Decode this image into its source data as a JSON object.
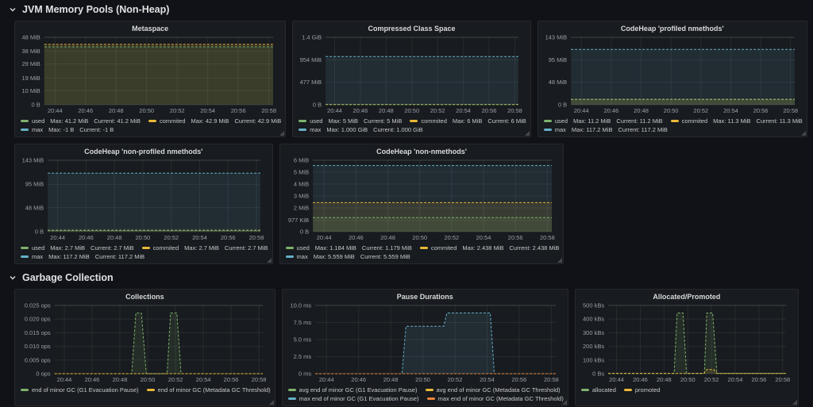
{
  "colors": {
    "ui": {
      "background": "#111217",
      "panel_background": "#181b1f"
    },
    "series": {
      "green": "#7EB26D",
      "yellow": "#EAB839",
      "blue": "#64B0C8",
      "orange": "#EF843C"
    }
  },
  "x_axis": {
    "domain": [
      43.3,
      58.28
    ],
    "ticks": [
      {
        "v": 44,
        "label": "20:44"
      },
      {
        "v": 46,
        "label": "20:46"
      },
      {
        "v": 48,
        "label": "20:48"
      },
      {
        "v": 50,
        "label": "20:50"
      },
      {
        "v": 52,
        "label": "20:52"
      },
      {
        "v": 54,
        "label": "20:54"
      },
      {
        "v": 56,
        "label": "20:56"
      },
      {
        "v": 58,
        "label": "20:58"
      }
    ]
  },
  "sections": [
    {
      "title": "JVM Memory Pools (Non-Heap)",
      "rows": [
        [
          {
            "title": "Metaspace",
            "chart_data": {
              "type": "area",
              "unit": "MiB",
              "y_max": 48,
              "y_ticks": [
                {
                  "v": 0,
                  "label": "0 B"
                },
                {
                  "v": 10,
                  "label": "10 MiB"
                },
                {
                  "v": 19,
                  "label": "19 MiB"
                },
                {
                  "v": 29,
                  "label": "29 MiB"
                },
                {
                  "v": 38,
                  "label": "38 MiB"
                },
                {
                  "v": 48,
                  "label": "48 MiB"
                }
              ],
              "series": [
                {
                  "name": "commited",
                  "color": "yellow",
                  "fill": true,
                  "flat": 42.9
                },
                {
                  "name": "used",
                  "color": "green",
                  "fill": true,
                  "flat": 41.2
                }
              ]
            },
            "legend_rows": [
              [
                {
                  "color": "green",
                  "label": "used",
                  "max": "41.2 MiB",
                  "current": "41.2 MiB"
                },
                {
                  "color": "yellow",
                  "label": "commited",
                  "max": "42.9 MiB",
                  "current": "42.9 MiB"
                }
              ],
              [
                {
                  "color": "blue",
                  "label": "max",
                  "max": "-1 B",
                  "current": "-1 B"
                }
              ]
            ]
          },
          {
            "title": "Compressed Class Space",
            "chart_data": {
              "type": "area",
              "unit": "MiB",
              "y_max": 1433.6,
              "y_ticks": [
                {
                  "v": 0,
                  "label": "0 B"
                },
                {
                  "v": 477,
                  "label": "477 MiB"
                },
                {
                  "v": 954,
                  "label": "954 MiB"
                },
                {
                  "v": 1433.6,
                  "label": "1.4 GiB"
                }
              ],
              "series": [
                {
                  "name": "max",
                  "color": "blue",
                  "fill": true,
                  "flat": 1024
                },
                {
                  "name": "commited",
                  "color": "yellow",
                  "fill": true,
                  "flat": 6
                },
                {
                  "name": "used",
                  "color": "green",
                  "fill": true,
                  "flat": 5
                }
              ]
            },
            "legend_rows": [
              [
                {
                  "color": "green",
                  "label": "used",
                  "max": "5 MiB",
                  "current": "5 MiB"
                },
                {
                  "color": "yellow",
                  "label": "commited",
                  "max": "6 MiB",
                  "current": "6 MiB"
                }
              ],
              [
                {
                  "color": "blue",
                  "label": "max",
                  "max": "1.000 GiB",
                  "current": "1.000 GiB"
                }
              ]
            ]
          },
          {
            "title": "CodeHeap 'profiled nmethods'",
            "chart_data": {
              "type": "area",
              "unit": "MiB",
              "y_max": 143,
              "y_ticks": [
                {
                  "v": 0,
                  "label": "0 B"
                },
                {
                  "v": 48,
                  "label": "48 MiB"
                },
                {
                  "v": 95,
                  "label": "95 MiB"
                },
                {
                  "v": 143,
                  "label": "143 MiB"
                }
              ],
              "series": [
                {
                  "name": "max",
                  "color": "blue",
                  "fill": true,
                  "flat": 117.2
                },
                {
                  "name": "commited",
                  "color": "yellow",
                  "fill": true,
                  "flat": 11.3
                },
                {
                  "name": "used",
                  "color": "green",
                  "fill": true,
                  "flat": 11.2
                }
              ]
            },
            "legend_rows": [
              [
                {
                  "color": "green",
                  "label": "used",
                  "max": "11.2 MiB",
                  "current": "11.2 MiB"
                },
                {
                  "color": "yellow",
                  "label": "commited",
                  "max": "11.3 MiB",
                  "current": "11.3 MiB"
                }
              ],
              [
                {
                  "color": "blue",
                  "label": "max",
                  "max": "117.2 MiB",
                  "current": "117.2 MiB"
                }
              ]
            ]
          }
        ],
        [
          {
            "title": "CodeHeap 'non-profiled nmethods'",
            "chart_data": {
              "type": "area",
              "unit": "MiB",
              "y_max": 143,
              "y_ticks": [
                {
                  "v": 0,
                  "label": "0 B"
                },
                {
                  "v": 48,
                  "label": "48 MiB"
                },
                {
                  "v": 95,
                  "label": "95 MiB"
                },
                {
                  "v": 143,
                  "label": "143 MiB"
                }
              ],
              "series": [
                {
                  "name": "max",
                  "color": "blue",
                  "fill": true,
                  "flat": 117.2
                },
                {
                  "name": "commited",
                  "color": "yellow",
                  "fill": true,
                  "flat": 2.7
                },
                {
                  "name": "used",
                  "color": "green",
                  "fill": true,
                  "flat": 2.7
                }
              ]
            },
            "legend_rows": [
              [
                {
                  "color": "green",
                  "label": "used",
                  "max": "2.7 MiB",
                  "current": "2.7 MiB"
                },
                {
                  "color": "yellow",
                  "label": "commited",
                  "max": "2.7 MiB",
                  "current": "2.7 MiB"
                }
              ],
              [
                {
                  "color": "blue",
                  "label": "max",
                  "max": "117.2 MiB",
                  "current": "117.2 MiB"
                }
              ]
            ]
          },
          {
            "title": "CodeHeap 'non-nmethods'",
            "chart_data": {
              "type": "area",
              "unit": "MiB",
              "y_max": 6,
              "y_ticks": [
                {
                  "v": 0,
                  "label": "0 B"
                },
                {
                  "v": 0.954,
                  "label": "977 KiB"
                },
                {
                  "v": 2,
                  "label": "2 MiB"
                },
                {
                  "v": 3,
                  "label": "3 MiB"
                },
                {
                  "v": 4,
                  "label": "4 MiB"
                },
                {
                  "v": 5,
                  "label": "5 MiB"
                },
                {
                  "v": 6,
                  "label": "6 MiB"
                }
              ],
              "series": [
                {
                  "name": "max",
                  "color": "blue",
                  "fill": true,
                  "flat": 5.559
                },
                {
                  "name": "commited",
                  "color": "yellow",
                  "fill": true,
                  "flat": 2.438
                },
                {
                  "name": "used",
                  "color": "green",
                  "fill": true,
                  "flat": 1.179
                }
              ]
            },
            "legend_rows": [
              [
                {
                  "color": "green",
                  "label": "used",
                  "max": "1.184 MiB",
                  "current": "1.179 MiB"
                },
                {
                  "color": "yellow",
                  "label": "commited",
                  "max": "2.438 MiB",
                  "current": "2.438 MiB"
                }
              ],
              [
                {
                  "color": "blue",
                  "label": "max",
                  "max": "5.559 MiB",
                  "current": "5.559 MiB"
                }
              ]
            ]
          }
        ]
      ]
    },
    {
      "title": "Garbage Collection",
      "rows": [
        [
          {
            "title": "Collections",
            "chart_data": {
              "type": "area",
              "unit": "ops",
              "y_max": 0.025,
              "y_ticks": [
                {
                  "v": 0,
                  "label": "0 ops"
                },
                {
                  "v": 0.005,
                  "label": "0.005 ops"
                },
                {
                  "v": 0.01,
                  "label": "0.010 ops"
                },
                {
                  "v": 0.015,
                  "label": "0.015 ops"
                },
                {
                  "v": 0.02,
                  "label": "0.020 ops"
                },
                {
                  "v": 0.025,
                  "label": "0.025 ops"
                }
              ],
              "series": [
                {
                  "name": "g1-evacuation-pause",
                  "color": "green",
                  "fill": true,
                  "points": [
                    [
                      43.3,
                      0
                    ],
                    [
                      48.85,
                      0
                    ],
                    [
                      49.15,
                      0.0222
                    ],
                    [
                      49.55,
                      0.0222
                    ],
                    [
                      49.9,
                      0
                    ],
                    [
                      51.4,
                      0
                    ],
                    [
                      51.65,
                      0.0222
                    ],
                    [
                      52.1,
                      0.0222
                    ],
                    [
                      52.4,
                      0
                    ],
                    [
                      58.28,
                      0
                    ]
                  ]
                },
                {
                  "name": "metadata-gc-threshold",
                  "color": "yellow",
                  "fill": false,
                  "flat": 0
                }
              ]
            },
            "legend_rows": [
              [
                {
                  "color": "green",
                  "label": "end of minor GC (G1 Evacuation Pause)"
                },
                {
                  "color": "yellow",
                  "label": "end of minor GC (Metadata GC Threshold)"
                }
              ]
            ]
          },
          {
            "title": "Pause Durations",
            "chart_data": {
              "type": "area",
              "unit": "ms",
              "y_max": 10,
              "y_ticks": [
                {
                  "v": 0,
                  "label": "0 ms"
                },
                {
                  "v": 2.5,
                  "label": "2.5 ms"
                },
                {
                  "v": 5,
                  "label": "5.0 ms"
                },
                {
                  "v": 7.5,
                  "label": "7.5 ms"
                },
                {
                  "v": 10,
                  "label": "10.0 ms"
                }
              ],
              "series": [
                {
                  "name": "avg-g1-evacuation-pause",
                  "color": "green",
                  "fill": false,
                  "flat": 0
                },
                {
                  "name": "avg-metadata-gc-threshold",
                  "color": "yellow",
                  "fill": false,
                  "flat": 0
                },
                {
                  "name": "max-g1-evacuation-pause",
                  "color": "blue",
                  "fill": true,
                  "points": [
                    [
                      43.3,
                      0
                    ],
                    [
                      48.7,
                      0
                    ],
                    [
                      48.95,
                      6.95
                    ],
                    [
                      51.3,
                      6.95
                    ],
                    [
                      51.5,
                      8.9
                    ],
                    [
                      54.2,
                      8.9
                    ],
                    [
                      54.45,
                      0
                    ],
                    [
                      58.28,
                      0
                    ]
                  ]
                },
                {
                  "name": "max-metadata-gc-threshold",
                  "color": "orange",
                  "fill": false,
                  "flat": 0
                }
              ]
            },
            "legend_rows": [
              [
                {
                  "color": "green",
                  "label": "avg end of minor GC (G1 Evacuation Pause)"
                },
                {
                  "color": "yellow",
                  "label": "avg end of minor GC (Metadata GC Threshold)"
                }
              ],
              [
                {
                  "color": "blue",
                  "label": "max end of minor GC (G1 Evacuation Pause)"
                },
                {
                  "color": "orange",
                  "label": "max end of minor GC (Metadata GC Threshold)"
                }
              ]
            ]
          },
          {
            "title": "Allocated/Promoted",
            "chart_data": {
              "type": "area",
              "unit": "kBs",
              "y_max": 500,
              "y_ticks": [
                {
                  "v": 0,
                  "label": "0 Bs"
                },
                {
                  "v": 100,
                  "label": "100 kBs"
                },
                {
                  "v": 200,
                  "label": "200 kBs"
                },
                {
                  "v": 300,
                  "label": "300 kBs"
                },
                {
                  "v": 400,
                  "label": "400 kBs"
                },
                {
                  "v": 500,
                  "label": "500 kBs"
                }
              ],
              "series": [
                {
                  "name": "allocated",
                  "color": "green",
                  "fill": true,
                  "points": [
                    [
                      43.3,
                      3
                    ],
                    [
                      48.85,
                      3
                    ],
                    [
                      49.1,
                      445
                    ],
                    [
                      49.6,
                      445
                    ],
                    [
                      49.9,
                      3
                    ],
                    [
                      51.4,
                      3
                    ],
                    [
                      51.6,
                      445
                    ],
                    [
                      52.1,
                      445
                    ],
                    [
                      52.45,
                      3
                    ],
                    [
                      58.28,
                      3
                    ]
                  ]
                },
                {
                  "name": "promoted",
                  "color": "yellow",
                  "fill": true,
                  "points": [
                    [
                      43.3,
                      1
                    ],
                    [
                      51.35,
                      1
                    ],
                    [
                      51.6,
                      30
                    ],
                    [
                      52.2,
                      30
                    ],
                    [
                      52.45,
                      1
                    ],
                    [
                      58.28,
                      1
                    ]
                  ]
                }
              ]
            },
            "legend_rows": [
              [
                {
                  "color": "green",
                  "label": "allocated"
                },
                {
                  "color": "yellow",
                  "label": "promoted"
                }
              ]
            ]
          }
        ]
      ]
    }
  ]
}
